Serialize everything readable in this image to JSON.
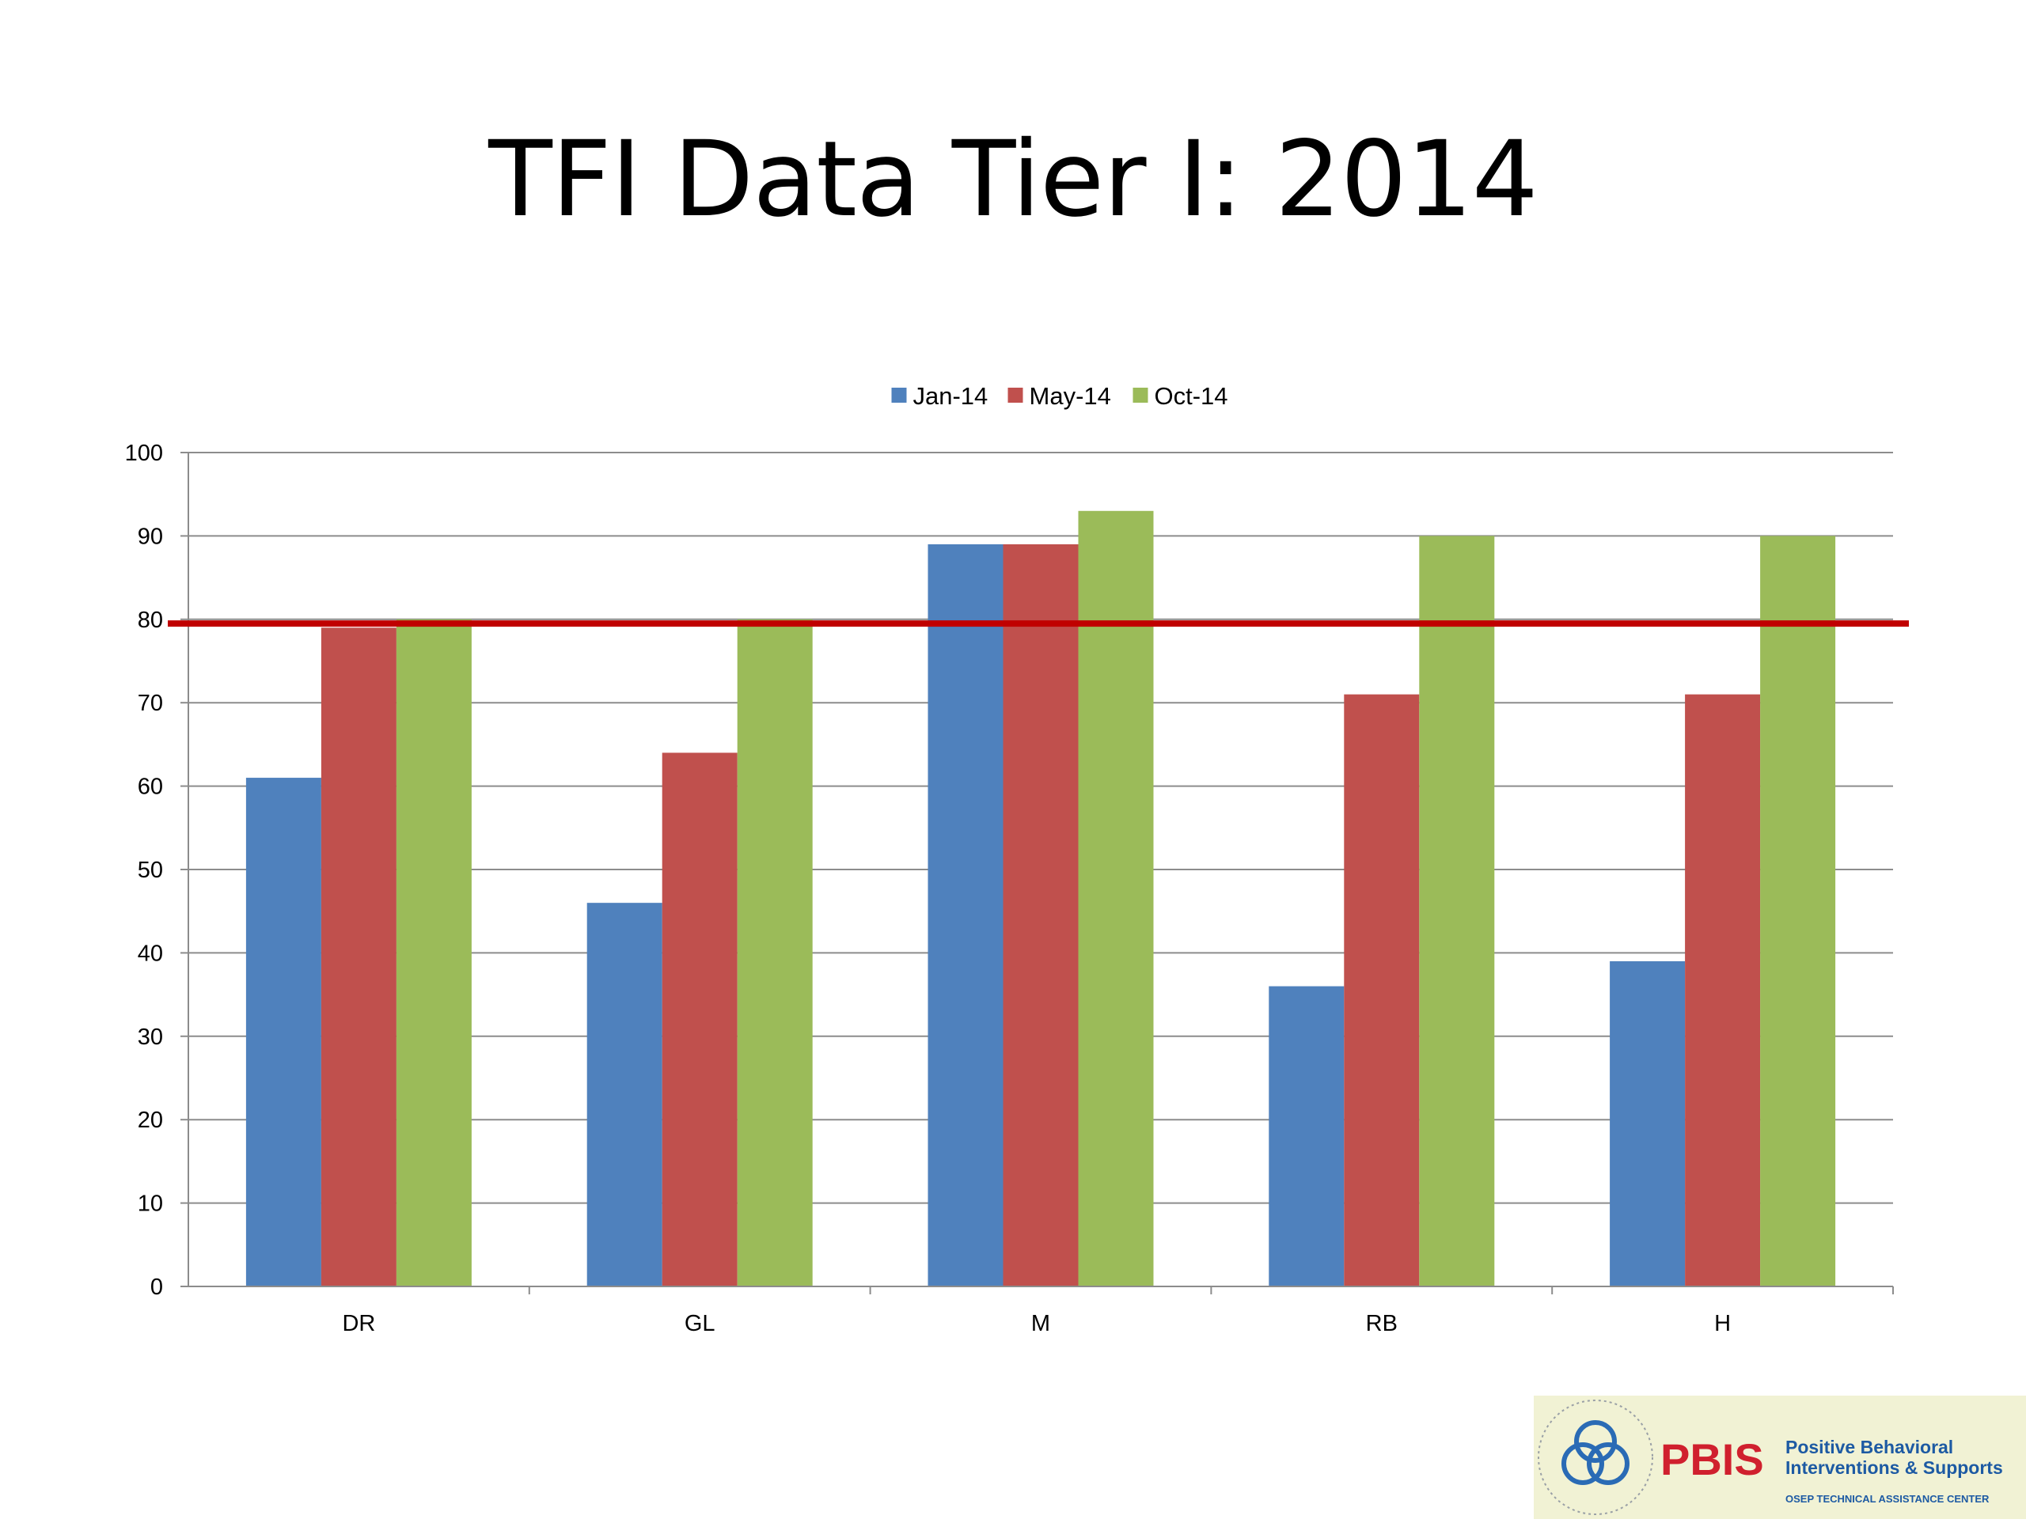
{
  "slide": {
    "title": "TFI Data Tier I: 2014"
  },
  "chart_data": {
    "type": "bar",
    "title": "",
    "xlabel": "",
    "ylabel": "",
    "categories": [
      "DR",
      "GL",
      "M",
      "RB",
      "H"
    ],
    "series": [
      {
        "name": "Jan-14",
        "color": "#4f81bd",
        "values": [
          61,
          46,
          89,
          36,
          39
        ]
      },
      {
        "name": "May-14",
        "color": "#c0504d",
        "values": [
          79,
          64,
          89,
          71,
          71
        ]
      },
      {
        "name": "Oct-14",
        "color": "#9bbb59",
        "values": [
          80,
          80,
          93,
          90,
          90
        ]
      }
    ],
    "ylim": [
      0,
      100
    ],
    "yticks": [
      0,
      10,
      20,
      30,
      40,
      50,
      60,
      70,
      80,
      90,
      100
    ],
    "grid": true,
    "legend": "top-center",
    "reference_line": {
      "value": 79.5,
      "color": "#c00000"
    }
  },
  "logo": {
    "acronym": "PBIS",
    "line1": "Positive Behavioral",
    "line2": "Interventions & Supports",
    "line3": "OSEP TECHNICAL ASSISTANCE CENTER",
    "acronym_color": "#d0202e",
    "text_color": "#1d5aa3"
  }
}
